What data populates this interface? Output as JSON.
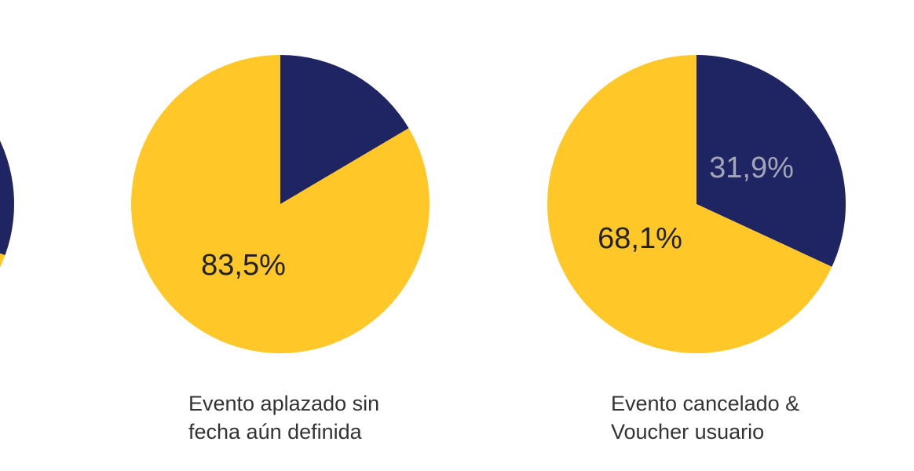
{
  "colors": {
    "navy": "#1f2462",
    "yellow": "#ffc727",
    "label_dark": "#222222",
    "label_light": "#a3a6b8"
  },
  "chart_data": [
    {
      "type": "pie",
      "title": "",
      "caption": [
        "Evento aplazado sin",
        "fecha aún definida"
      ],
      "slices": [
        {
          "value": 16.5,
          "color": "#1f2462",
          "label": ""
        },
        {
          "value": 83.5,
          "color": "#ffc727",
          "label": "83,5%"
        }
      ]
    },
    {
      "type": "pie",
      "title": "",
      "caption": [
        "Evento cancelado &",
        "Voucher usuario"
      ],
      "slices": [
        {
          "value": 31.9,
          "color": "#1f2462",
          "label": "31,9%"
        },
        {
          "value": 68.1,
          "color": "#ffc727",
          "label": "68,1%"
        }
      ]
    }
  ]
}
